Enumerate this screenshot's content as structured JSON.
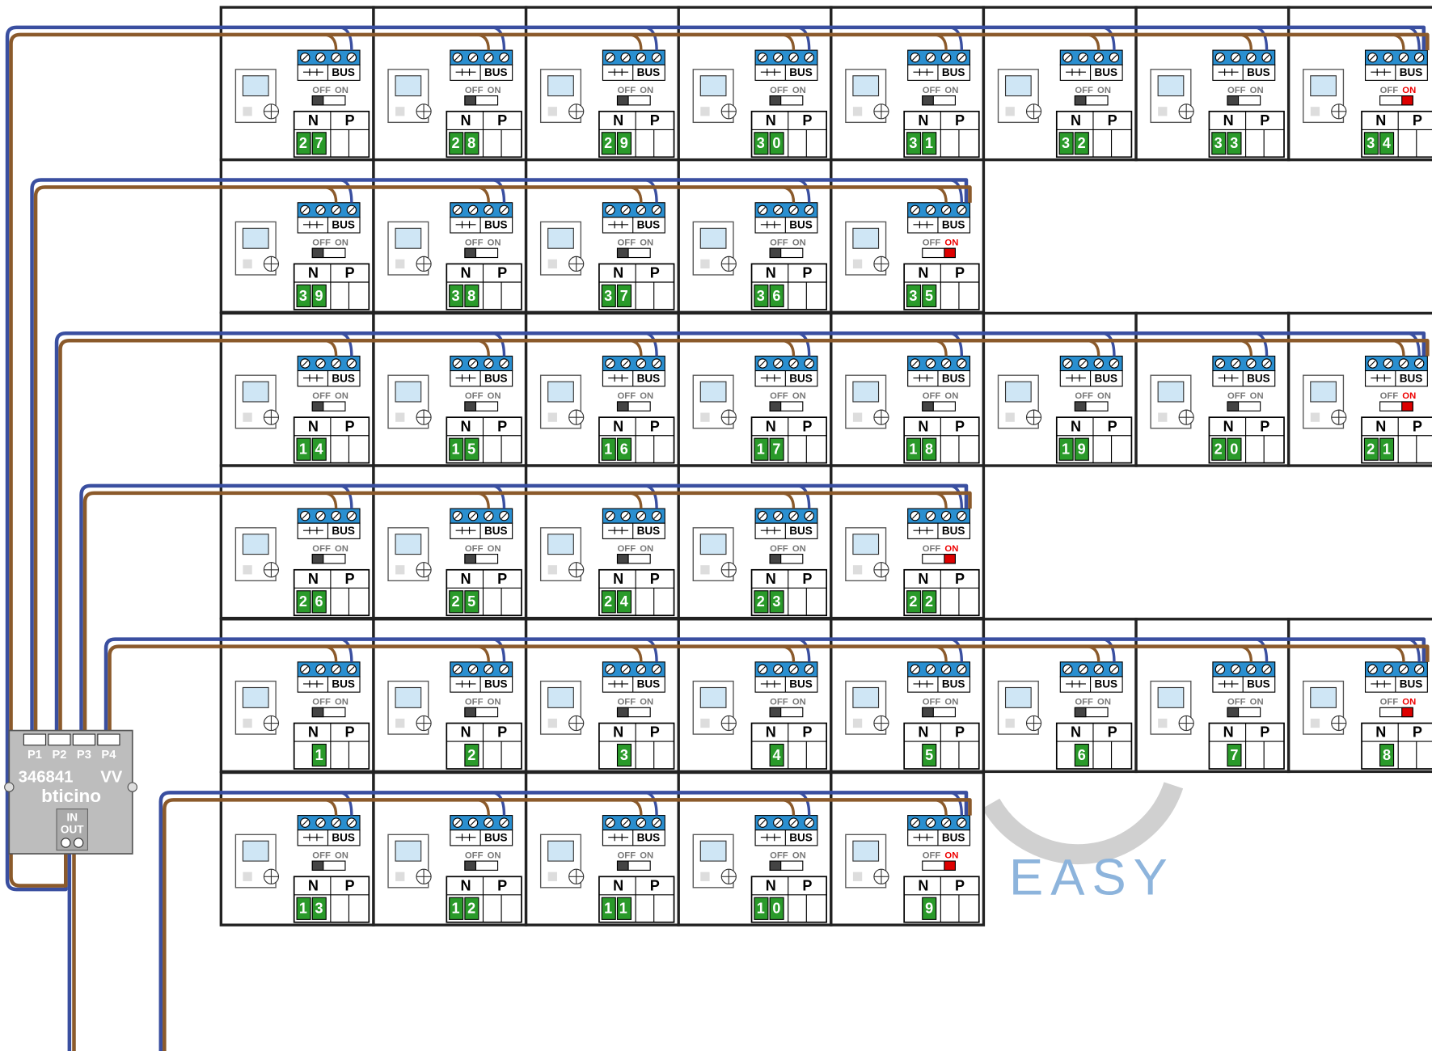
{
  "labels": {
    "bus": "BUS",
    "off": "OFF",
    "on": "ON",
    "n": "N",
    "p": "P"
  },
  "interface": {
    "ports": [
      "P1",
      "P2",
      "P3",
      "P4"
    ],
    "model": "346841",
    "suffix": "VV",
    "brand": "bticino",
    "in": "IN",
    "out": "OUT"
  },
  "watermark": "EASY",
  "rows": [
    {
      "modules": [
        {
          "number": "27",
          "terminated": false
        },
        {
          "number": "28",
          "terminated": false
        },
        {
          "number": "29",
          "terminated": false
        },
        {
          "number": "30",
          "terminated": false
        },
        {
          "number": "31",
          "terminated": false
        },
        {
          "number": "32",
          "terminated": false
        },
        {
          "number": "33",
          "terminated": false
        },
        {
          "number": "34",
          "terminated": true
        }
      ]
    },
    {
      "modules": [
        {
          "number": "39",
          "terminated": false
        },
        {
          "number": "38",
          "terminated": false
        },
        {
          "number": "37",
          "terminated": false
        },
        {
          "number": "36",
          "terminated": false
        },
        {
          "number": "35",
          "terminated": true
        }
      ]
    },
    {
      "modules": [
        {
          "number": "14",
          "terminated": false
        },
        {
          "number": "15",
          "terminated": false
        },
        {
          "number": "16",
          "terminated": false
        },
        {
          "number": "17",
          "terminated": false
        },
        {
          "number": "18",
          "terminated": false
        },
        {
          "number": "19",
          "terminated": false
        },
        {
          "number": "20",
          "terminated": false
        },
        {
          "number": "21",
          "terminated": true
        }
      ]
    },
    {
      "modules": [
        {
          "number": "26",
          "terminated": false
        },
        {
          "number": "25",
          "terminated": false
        },
        {
          "number": "24",
          "terminated": false
        },
        {
          "number": "23",
          "terminated": false
        },
        {
          "number": "22",
          "terminated": true
        }
      ]
    },
    {
      "modules": [
        {
          "number": "1",
          "terminated": false
        },
        {
          "number": "2",
          "terminated": false
        },
        {
          "number": "3",
          "terminated": false
        },
        {
          "number": "4",
          "terminated": false
        },
        {
          "number": "5",
          "terminated": false
        },
        {
          "number": "6",
          "terminated": false
        },
        {
          "number": "7",
          "terminated": false
        },
        {
          "number": "8",
          "terminated": true
        }
      ]
    },
    {
      "modules": [
        {
          "number": "13",
          "terminated": false
        },
        {
          "number": "12",
          "terminated": false
        },
        {
          "number": "11",
          "terminated": false
        },
        {
          "number": "10",
          "terminated": false
        },
        {
          "number": "9",
          "terminated": true
        }
      ]
    }
  ]
}
